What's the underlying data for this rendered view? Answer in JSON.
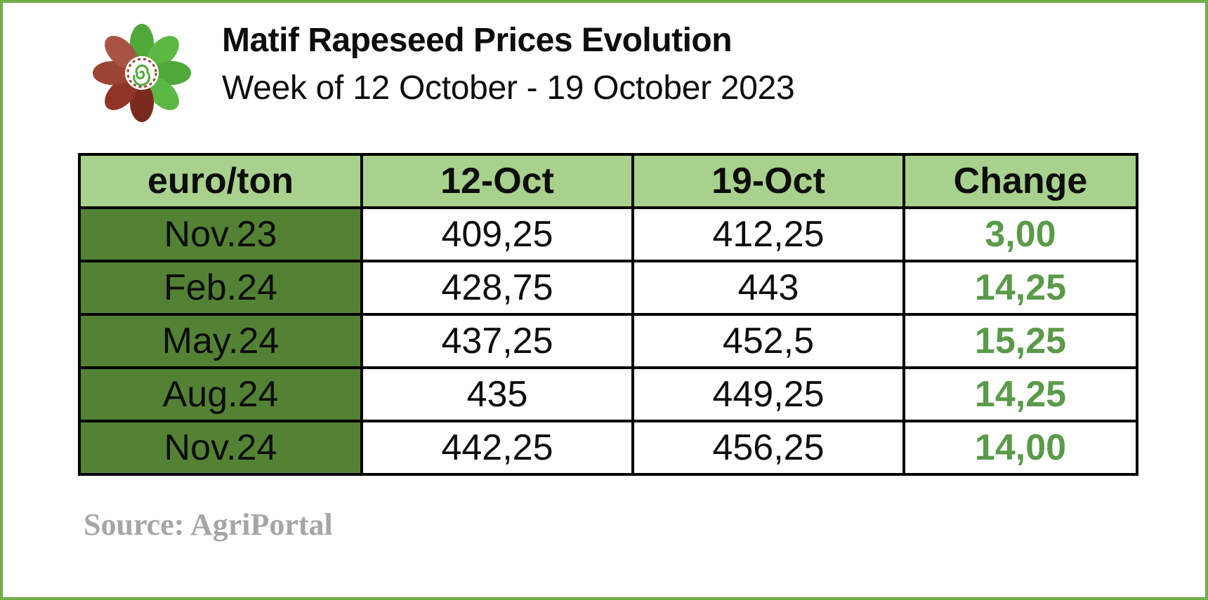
{
  "header": {
    "title": "Matif Rapeseed Prices Evolution",
    "subtitle": "Week of 12 October - 19 October 2023"
  },
  "logo": {
    "icon": "flower-spiral-logo-icon",
    "colors": {
      "green": "#4fa83a",
      "dark_red": "#7a2a1e",
      "red_brown": "#9c4433"
    }
  },
  "colors": {
    "frame_border": "#70ad47",
    "header_fill": "#a9d18e",
    "contract_fill": "#548235",
    "change_text": "#5a9a48",
    "source_text": "#a6a6a6"
  },
  "chart_data": {
    "type": "table",
    "columns": [
      "euro/ton",
      "12-Oct",
      "19-Oct",
      "Change"
    ],
    "rows": [
      {
        "contract": "Nov.23",
        "oct12": "409,25",
        "oct19": "412,25",
        "change": "3,00"
      },
      {
        "contract": "Feb.24",
        "oct12": "428,75",
        "oct19": "443",
        "change": "14,25"
      },
      {
        "contract": "May.24",
        "oct12": "437,25",
        "oct19": "452,5",
        "change": "15,25"
      },
      {
        "contract": "Aug.24",
        "oct12": "435",
        "oct19": "449,25",
        "change": "14,25"
      },
      {
        "contract": "Nov.24",
        "oct12": "442,25",
        "oct19": "456,25",
        "change": "14,00"
      }
    ]
  },
  "footer": {
    "source": "Source: AgriPortal"
  }
}
